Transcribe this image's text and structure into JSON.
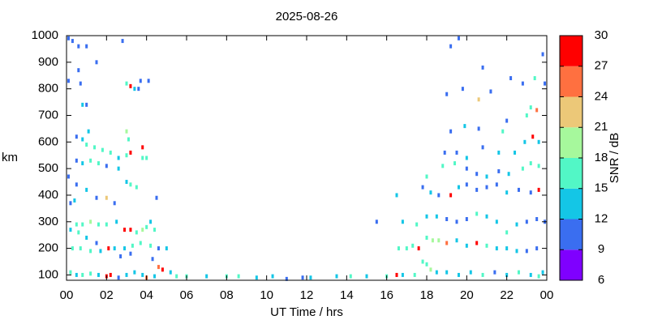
{
  "chart_data": {
    "type": "scatter",
    "title": "2025-08-26",
    "xlabel": "UT Time / hrs",
    "ylabel": "km",
    "colorbar_label": "SNR / dB",
    "xlim": [
      0,
      24
    ],
    "ylim": [
      80,
      1000
    ],
    "xticks": [
      {
        "value": 0,
        "label": "00"
      },
      {
        "value": 2,
        "label": "02"
      },
      {
        "value": 4,
        "label": "04"
      },
      {
        "value": 6,
        "label": "06"
      },
      {
        "value": 8,
        "label": "08"
      },
      10,
      12,
      14,
      16,
      18,
      20,
      22,
      {
        "value": 24,
        "label": "00"
      }
    ],
    "yticks": [
      100,
      200,
      300,
      400,
      500,
      600,
      700,
      800,
      900,
      1000
    ],
    "clim": [
      6,
      30
    ],
    "cticks": [
      6,
      9,
      12,
      15,
      18,
      21,
      24,
      27,
      30
    ],
    "colors": [
      "#7f00ff",
      "#3a6ef0",
      "#14c6e6",
      "#52f7c6",
      "#a6f89c",
      "#ecc878",
      "#ff7040",
      "#ff0000"
    ],
    "x": [
      0.1,
      0.3,
      0.6,
      1.0,
      0.6,
      1.5,
      0.7,
      0.8,
      1.0,
      0.5,
      0.8,
      1.0,
      1.4,
      1.8,
      2.2,
      2.6,
      3.0,
      3.2,
      3.8,
      3.8,
      4.0,
      3.0,
      3.2,
      3.4,
      3.6,
      3.7,
      4.1,
      2.8,
      0.5,
      0.8,
      1.2,
      1.6,
      2.0,
      2.6,
      3.0,
      3.2,
      3.5,
      0.5,
      1.0,
      1.5,
      2.0,
      2.4,
      0.4,
      0.2,
      0.5,
      0.8,
      1.2,
      1.6,
      2.0,
      2.5,
      2.9,
      3.2,
      3.5,
      3.8,
      4.0,
      4.2,
      4.4,
      0.2,
      0.6,
      1.0,
      1.5,
      2.1,
      0.3,
      0.7,
      1.2,
      1.7,
      2.4,
      2.9,
      3.3,
      3.7,
      4.2,
      4.6,
      5.0,
      2.7,
      3.2,
      4.3,
      4.6,
      4.8,
      5.2,
      0.2,
      0.5,
      0.8,
      1.2,
      1.6,
      2.0,
      2.2,
      2.6,
      3.0,
      3.4,
      3.8,
      4.0,
      4.4,
      5.5,
      6.0,
      7.0,
      8.0,
      8.6,
      9.5,
      10.3,
      11.0,
      11.8,
      12.2,
      13.5,
      14.2,
      15.0,
      16.0,
      16.5,
      16.8,
      17.4,
      0.1,
      0.1,
      4.5,
      1.1,
      3.0,
      3.1,
      15.5,
      16.5,
      16.8,
      17.5,
      16.6,
      17.0,
      17.3,
      17.6,
      18.0,
      18.3,
      18.6,
      19.0,
      19.5,
      20.0,
      20.5,
      21.0,
      21.5,
      22.0,
      22.5,
      23.0,
      23.5,
      17.8,
      18.0,
      18.2,
      18.5,
      19.0,
      19.6,
      20.2,
      20.8,
      21.4,
      22.0,
      22.6,
      23.2,
      23.8,
      23.6,
      18.0,
      18.5,
      19.0,
      19.5,
      20.0,
      20.5,
      21.0,
      21.5,
      22.0,
      22.5,
      23.0,
      23.5,
      23.9,
      17.8,
      18.2,
      18.6,
      19.2,
      19.6,
      20.0,
      20.5,
      21.0,
      21.5,
      22.0,
      22.6,
      23.2,
      23.6,
      18.0,
      18.8,
      19.4,
      20.0,
      20.5,
      21.0,
      21.6,
      22.1,
      22.8,
      23.2,
      23.6,
      18.9,
      19.5,
      20.0,
      20.8,
      21.6,
      22.4,
      22.9,
      23.3,
      23.6,
      19.2,
      19.9,
      20.6,
      21.8,
      22.0,
      23.0,
      23.5,
      23.2,
      19.0,
      19.8,
      20.6,
      21.2,
      22.2,
      22.8,
      23.4,
      23.9,
      19.6,
      19.2,
      20.8,
      23.8
    ],
    "y": [
      990,
      980,
      960,
      960,
      870,
      900,
      820,
      740,
      740,
      620,
      610,
      590,
      580,
      570,
      560,
      540,
      550,
      560,
      580,
      540,
      540,
      820,
      810,
      800,
      800,
      830,
      830,
      980,
      530,
      520,
      530,
      520,
      510,
      500,
      450,
      440,
      430,
      440,
      420,
      390,
      390,
      370,
      380,
      370,
      290,
      290,
      300,
      290,
      290,
      300,
      270,
      270,
      260,
      270,
      280,
      300,
      270,
      270,
      260,
      240,
      220,
      200,
      200,
      200,
      190,
      190,
      200,
      200,
      210,
      220,
      210,
      200,
      200,
      170,
      180,
      160,
      130,
      120,
      110,
      110,
      100,
      100,
      105,
      100,
      95,
      100,
      90,
      100,
      110,
      100,
      90,
      95,
      95,
      95,
      95,
      95,
      95,
      90,
      95,
      85,
      90,
      90,
      95,
      95,
      95,
      95,
      100,
      100,
      100,
      470,
      830,
      390,
      640,
      640,
      610,
      300,
      400,
      300,
      290,
      200,
      200,
      210,
      200,
      240,
      230,
      230,
      220,
      230,
      210,
      220,
      210,
      200,
      200,
      190,
      190,
      200,
      150,
      140,
      120,
      110,
      110,
      100,
      110,
      100,
      110,
      100,
      110,
      100,
      110,
      95,
      320,
      320,
      310,
      300,
      310,
      330,
      320,
      300,
      260,
      290,
      300,
      310,
      300,
      430,
      410,
      400,
      400,
      430,
      440,
      420,
      430,
      440,
      410,
      420,
      410,
      420,
      470,
      510,
      520,
      500,
      480,
      470,
      490,
      480,
      500,
      520,
      510,
      560,
      560,
      540,
      580,
      560,
      560,
      600,
      620,
      600,
      640,
      660,
      650,
      640,
      680,
      700,
      720,
      730,
      780,
      800,
      760,
      790,
      840,
      820,
      840,
      820,
      990,
      960,
      880,
      930
    ],
    "values": [
      10,
      10,
      10,
      10,
      10,
      10,
      10,
      12,
      10,
      10,
      12,
      15,
      15,
      15,
      15,
      12,
      15,
      27,
      27,
      15,
      15,
      15,
      27,
      12,
      10,
      10,
      10,
      10,
      10,
      12,
      15,
      15,
      10,
      12,
      12,
      15,
      15,
      10,
      12,
      10,
      21,
      10,
      12,
      10,
      15,
      15,
      18,
      15,
      15,
      12,
      27,
      27,
      15,
      18,
      15,
      12,
      15,
      12,
      15,
      12,
      10,
      27,
      15,
      15,
      15,
      12,
      12,
      12,
      15,
      15,
      15,
      10,
      12,
      10,
      10,
      10,
      24,
      27,
      12,
      15,
      12,
      15,
      15,
      12,
      27,
      27,
      10,
      12,
      12,
      12,
      24,
      12,
      15,
      15,
      12,
      15,
      15,
      12,
      12,
      10,
      10,
      12,
      12,
      15,
      12,
      15,
      27,
      12,
      15,
      10,
      10,
      10,
      12,
      18,
      15,
      10,
      12,
      12,
      15,
      15,
      15,
      15,
      27,
      15,
      18,
      18,
      24,
      12,
      12,
      27,
      15,
      12,
      12,
      12,
      10,
      10,
      15,
      15,
      18,
      12,
      12,
      12,
      12,
      15,
      10,
      12,
      15,
      12,
      12,
      15,
      12,
      12,
      10,
      10,
      10,
      15,
      12,
      12,
      15,
      12,
      10,
      10,
      10,
      10,
      12,
      10,
      27,
      12,
      10,
      10,
      10,
      10,
      12,
      10,
      10,
      27,
      15,
      15,
      15,
      10,
      10,
      12,
      10,
      12,
      15,
      15,
      15,
      10,
      10,
      12,
      10,
      12,
      12,
      12,
      27,
      12,
      10,
      12,
      10,
      15,
      10,
      15,
      24,
      15,
      10,
      10,
      21,
      10,
      10,
      10,
      15,
      10,
      10,
      10,
      10,
      10
    ]
  }
}
